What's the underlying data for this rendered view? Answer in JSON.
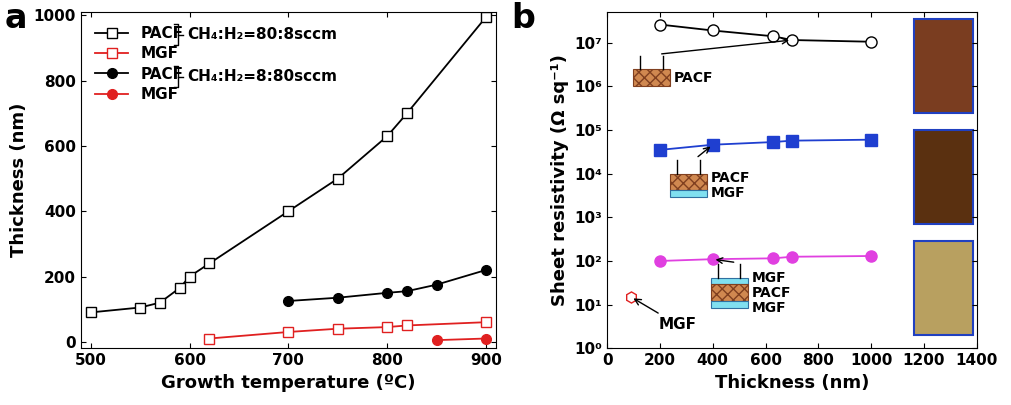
{
  "chart_data": [
    {
      "type": "line",
      "panel_label": "a",
      "x_label": "Growth temperature (ºC)",
      "y_label": "Thickness (nm)",
      "xlim": [
        490,
        910
      ],
      "xticks": [
        500,
        600,
        700,
        800,
        900
      ],
      "ylim": [
        -20,
        1010
      ],
      "yticks": [
        0,
        200,
        400,
        600,
        800,
        1000
      ],
      "legend": "upper left",
      "groups": [
        "CH₄:H₂=80:8sccm",
        "CH₄:H₂=8:80sccm"
      ],
      "series": [
        {
          "name": "PACF",
          "color": "#000000",
          "marker": "open_square",
          "group": 0,
          "x": [
            500,
            550,
            570,
            590,
            600,
            620,
            700,
            750,
            800,
            820,
            900
          ],
          "values": [
            90,
            105,
            120,
            165,
            200,
            240,
            400,
            500,
            630,
            700,
            995
          ]
        },
        {
          "name": "MGF",
          "color": "#e02020",
          "marker": "open_square",
          "group": 0,
          "x": [
            620,
            700,
            750,
            800,
            820,
            900
          ],
          "values": [
            10,
            30,
            40,
            45,
            50,
            60
          ]
        },
        {
          "name": "PACF",
          "color": "#000000",
          "marker": "circle",
          "group": 1,
          "x": [
            700,
            750,
            800,
            820,
            850,
            900
          ],
          "values": [
            125,
            135,
            150,
            155,
            175,
            220
          ]
        },
        {
          "name": "MGF",
          "color": "#e02020",
          "marker": "circle",
          "group": 1,
          "x": [
            850,
            900
          ],
          "values": [
            5,
            10
          ]
        }
      ]
    },
    {
      "type": "line",
      "panel_label": "b",
      "log": "y",
      "x_label": "Thickness (nm)",
      "y_label": "Sheet resistivity (Ω sq⁻¹)",
      "xlim": [
        0,
        1400
      ],
      "xticks": [
        0,
        200,
        400,
        600,
        800,
        1000,
        1200,
        1400
      ],
      "ylim": [
        1,
        50000000
      ],
      "yticks": [
        {
          "value": 1,
          "label": "10⁰"
        },
        {
          "value": 10,
          "label": "10¹"
        },
        {
          "value": 100,
          "label": "10²"
        },
        {
          "value": 1000,
          "label": "10³"
        },
        {
          "value": 10000,
          "label": "10⁴"
        },
        {
          "value": 100000,
          "label": "10⁵"
        },
        {
          "value": 1000000,
          "label": "10⁶"
        },
        {
          "value": 10000000,
          "label": "10⁷"
        }
      ],
      "series": [
        {
          "layers": [
            "PACF"
          ],
          "color": "#000000",
          "marker": "open_circle",
          "x": [
            200,
            400,
            630,
            700,
            1000
          ],
          "values": [
            26000000,
            19000000,
            14000000,
            11500000,
            10500000
          ]
        },
        {
          "layers": [
            "PACF",
            "MGF"
          ],
          "color": "#1f3fd0",
          "marker": "square",
          "x": [
            200,
            400,
            630,
            700,
            1000
          ],
          "values": [
            35000,
            46000,
            53000,
            57000,
            60000
          ]
        },
        {
          "layers": [
            "MGF",
            "PACF",
            "MGF"
          ],
          "color": "#e040e0",
          "marker": "circle",
          "x": [
            200,
            400,
            630,
            700,
            1000
          ],
          "values": [
            100,
            110,
            115,
            125,
            130
          ]
        },
        {
          "name": "MGF",
          "color": "#e02020",
          "marker": "open_hexagon",
          "x": [
            90
          ],
          "values": [
            15
          ]
        }
      ]
    }
  ]
}
